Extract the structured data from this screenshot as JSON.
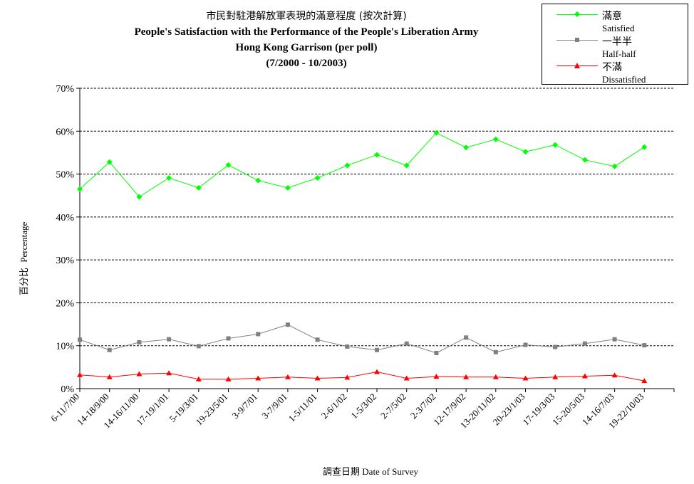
{
  "title": {
    "line1": "市民對駐港解放軍表現的滿意程度 (按次計算)",
    "line2": "People's Satisfaction with the Performance of the People's Liberation Army",
    "line3": "Hong Kong Garrison  (per poll)",
    "line4": "(7/2000 - 10/2003)"
  },
  "axis": {
    "y_label_zh": "百分比",
    "y_label_en": "Percentage",
    "x_label_zh": "調查日期",
    "x_label_en": "Date of Survey"
  },
  "legend": [
    {
      "zh": "滿意",
      "en": "Satisfied"
    },
    {
      "zh": "一半半",
      "en": "Half-half"
    },
    {
      "zh": "不滿",
      "en": "Dissatisfied"
    }
  ],
  "colors": {
    "satisfied": "#00ff00",
    "half": "#808080",
    "dissatisfied": "#ff0000",
    "grid": "#000000"
  },
  "chart_data": {
    "type": "line",
    "title": "People's Satisfaction with the Performance of the People's Liberation Army Hong Kong Garrison  (per poll)",
    "xlabel": "Date of Survey",
    "ylabel": "Percentage",
    "ylim": [
      0,
      70
    ],
    "yticks": [
      "0%",
      "10%",
      "20%",
      "30%",
      "40%",
      "50%",
      "60%",
      "70%"
    ],
    "grid": "horizontal dashed",
    "legend_position": "top-right",
    "categories": [
      "6-11/7/00",
      "14-18/9/00",
      "14-16/11/00",
      "17-19/1/01",
      "5-19/3/01",
      "19-23/5/01",
      "3-9/7/01",
      "3-7/9/01",
      "1-5/11/01",
      "2-6/1/02",
      "1-5/3/02",
      "2-7/5/02",
      "2-3/7/02",
      "12-17/9/02",
      "13-20/11/02",
      "20-23/1/03",
      "17-19/3/03",
      "15-20/5/03",
      "14-16/7/03",
      "19-22/10/03"
    ],
    "series": [
      {
        "name": "Satisfied",
        "marker": "diamond",
        "values": [
          46.5,
          52.8,
          44.7,
          49.1,
          46.8,
          52.1,
          48.5,
          46.8,
          49.1,
          52.0,
          54.5,
          52.0,
          59.6,
          56.2,
          58.1,
          55.2,
          56.8,
          53.3,
          51.8,
          56.3
        ]
      },
      {
        "name": "Half-half",
        "marker": "square",
        "values": [
          11.4,
          9.0,
          10.8,
          11.5,
          9.9,
          11.7,
          12.7,
          14.9,
          11.4,
          9.8,
          9.0,
          10.5,
          8.3,
          11.9,
          8.5,
          10.2,
          9.7,
          10.5,
          11.5,
          10.1
        ]
      },
      {
        "name": "Dissatisfied",
        "marker": "triangle",
        "values": [
          3.2,
          2.7,
          3.4,
          3.6,
          2.2,
          2.2,
          2.4,
          2.7,
          2.4,
          2.6,
          3.9,
          2.4,
          2.8,
          2.7,
          2.7,
          2.4,
          2.7,
          2.9,
          3.1,
          1.8
        ]
      }
    ]
  }
}
